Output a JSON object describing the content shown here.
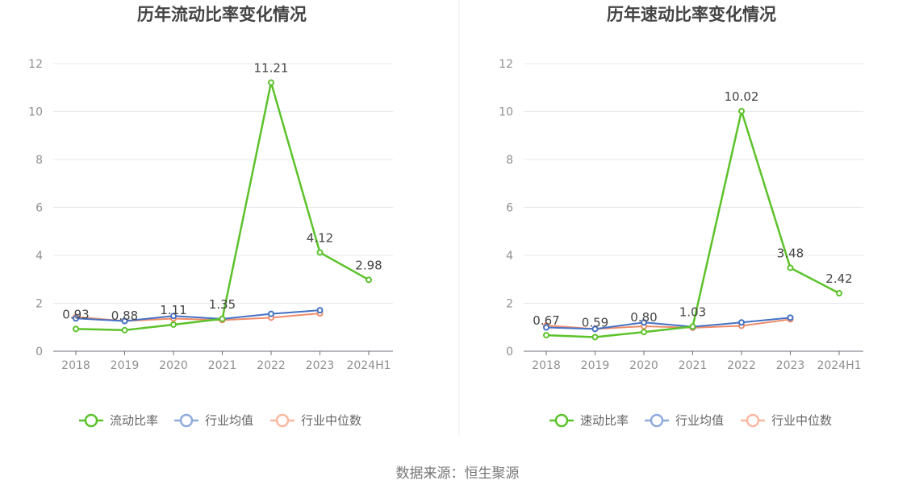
{
  "source_note": "数据来源：恒生聚源",
  "chart_data": [
    {
      "type": "line",
      "title": "历年流动比率变化情况",
      "categories": [
        "2018",
        "2019",
        "2020",
        "2021",
        "2022",
        "2023",
        "2024H1"
      ],
      "ylim": [
        0,
        12
      ],
      "yticks": [
        "0",
        "2",
        "4",
        "6",
        "8",
        "10",
        "12"
      ],
      "grid": true,
      "legend_position": "bottom",
      "series": [
        {
          "name": "流动比率",
          "color": "#5cc22a",
          "values": [
            0.93,
            0.88,
            1.11,
            1.35,
            11.21,
            4.12,
            2.98
          ],
          "labels": [
            "0.93",
            "0.88",
            "1.11",
            "1.35",
            "11.21",
            "4.12",
            "2.98"
          ]
        },
        {
          "name": "行业均值",
          "color": "#4472c4",
          "legend_color": "#8faadc",
          "values": [
            1.37,
            1.26,
            1.47,
            1.35,
            1.56,
            1.71,
            null
          ]
        },
        {
          "name": "行业中位数",
          "color": "#f08a68",
          "legend_color": "#f9b8a0",
          "values": [
            1.43,
            1.26,
            1.36,
            1.3,
            1.4,
            1.58,
            null
          ]
        }
      ]
    },
    {
      "type": "line",
      "title": "历年速动比率变化情况",
      "categories": [
        "2018",
        "2019",
        "2020",
        "2021",
        "2022",
        "2023",
        "2024H1"
      ],
      "ylim": [
        0,
        12
      ],
      "yticks": [
        "0",
        "2",
        "4",
        "6",
        "8",
        "10",
        "12"
      ],
      "grid": true,
      "legend_position": "bottom",
      "series": [
        {
          "name": "速动比率",
          "color": "#5cc22a",
          "values": [
            0.67,
            0.59,
            0.8,
            1.03,
            10.02,
            3.48,
            2.42
          ],
          "labels": [
            "0.67",
            "0.59",
            "0.80",
            "1.03",
            "10.02",
            "3.48",
            "2.42"
          ]
        },
        {
          "name": "行业均值",
          "color": "#4472c4",
          "legend_color": "#8faadc",
          "values": [
            0.99,
            0.93,
            1.2,
            1.02,
            1.2,
            1.4,
            null
          ]
        },
        {
          "name": "行业中位数",
          "color": "#f08a68",
          "legend_color": "#f9b8a0",
          "values": [
            1.07,
            0.93,
            1.04,
            0.98,
            1.06,
            1.33,
            null
          ]
        }
      ]
    }
  ]
}
